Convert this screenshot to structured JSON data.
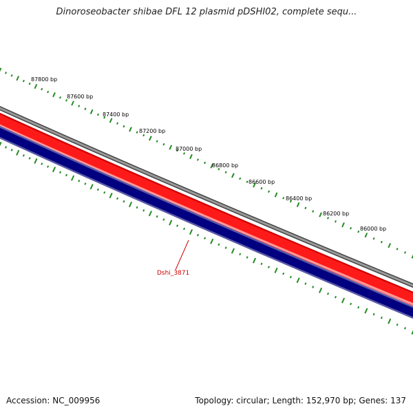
{
  "header": {
    "title": "Dinoroseobacter shibae DFL 12 plasmid pDSHI02, complete sequ..."
  },
  "footer": {
    "accession": "Accession: NC_009956",
    "summary": "Topology: circular; Length: 152,970 bp; Genes: 137"
  },
  "colors": {
    "backbone": "#808080",
    "forward_strand": "#ff0000",
    "reverse_strand": "#000080",
    "ticks": "#228b22",
    "gene_label": "#cc0000"
  },
  "ruler": {
    "ticks": [
      {
        "label": "87800 bp"
      },
      {
        "label": "87600 bp"
      },
      {
        "label": "87400 bp"
      },
      {
        "label": "87200 bp"
      },
      {
        "label": "87000 bp"
      },
      {
        "label": "86800 bp"
      },
      {
        "label": "86600 bp"
      },
      {
        "label": "86400 bp"
      },
      {
        "label": "86200 bp"
      },
      {
        "label": "86000 bp"
      }
    ]
  },
  "genes": [
    {
      "label": "Dshi_3871"
    }
  ]
}
